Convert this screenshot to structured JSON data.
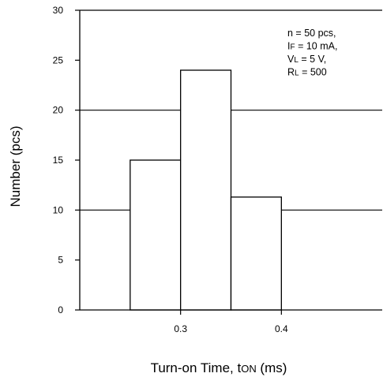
{
  "chart_data": {
    "type": "bar",
    "title": "",
    "xlabel": "Turn-on Time, tON (ms)",
    "xlabel_parts": {
      "main": "Turn-on Time, t",
      "sub": "ON",
      "unit": " (ms)"
    },
    "ylabel": "Number (pcs)",
    "xlim": [
      0.2,
      0.5
    ],
    "ylim": [
      0,
      30
    ],
    "x_ticks": [
      {
        "value": 0.3,
        "label": "0.3"
      },
      {
        "value": 0.4,
        "label": "0.4"
      }
    ],
    "y_ticks": [
      {
        "value": 0,
        "label": "0"
      },
      {
        "value": 5,
        "label": "5"
      },
      {
        "value": 10,
        "label": "10"
      },
      {
        "value": 15,
        "label": "15"
      },
      {
        "value": 20,
        "label": "20"
      },
      {
        "value": 25,
        "label": "25"
      },
      {
        "value": 30,
        "label": "30"
      }
    ],
    "gridlines_y": [
      10,
      20
    ],
    "bins": [
      {
        "x0": 0.25,
        "x1": 0.3,
        "value": 15
      },
      {
        "x0": 0.3,
        "x1": 0.35,
        "value": 24
      },
      {
        "x0": 0.35,
        "x1": 0.4,
        "value": 11.3
      }
    ],
    "annotation_lines": [
      {
        "main": "n = 50 pcs,",
        "sub": ""
      },
      {
        "main": "I",
        "sub": "F",
        "rest": " = 10 mA,"
      },
      {
        "main": "V",
        "sub": "L",
        "rest": " = 5 V,"
      },
      {
        "main": "R",
        "sub": "L",
        "rest": " = 500"
      }
    ],
    "colors": {
      "bar_fill": "#ffffff",
      "line": "#000000"
    }
  }
}
